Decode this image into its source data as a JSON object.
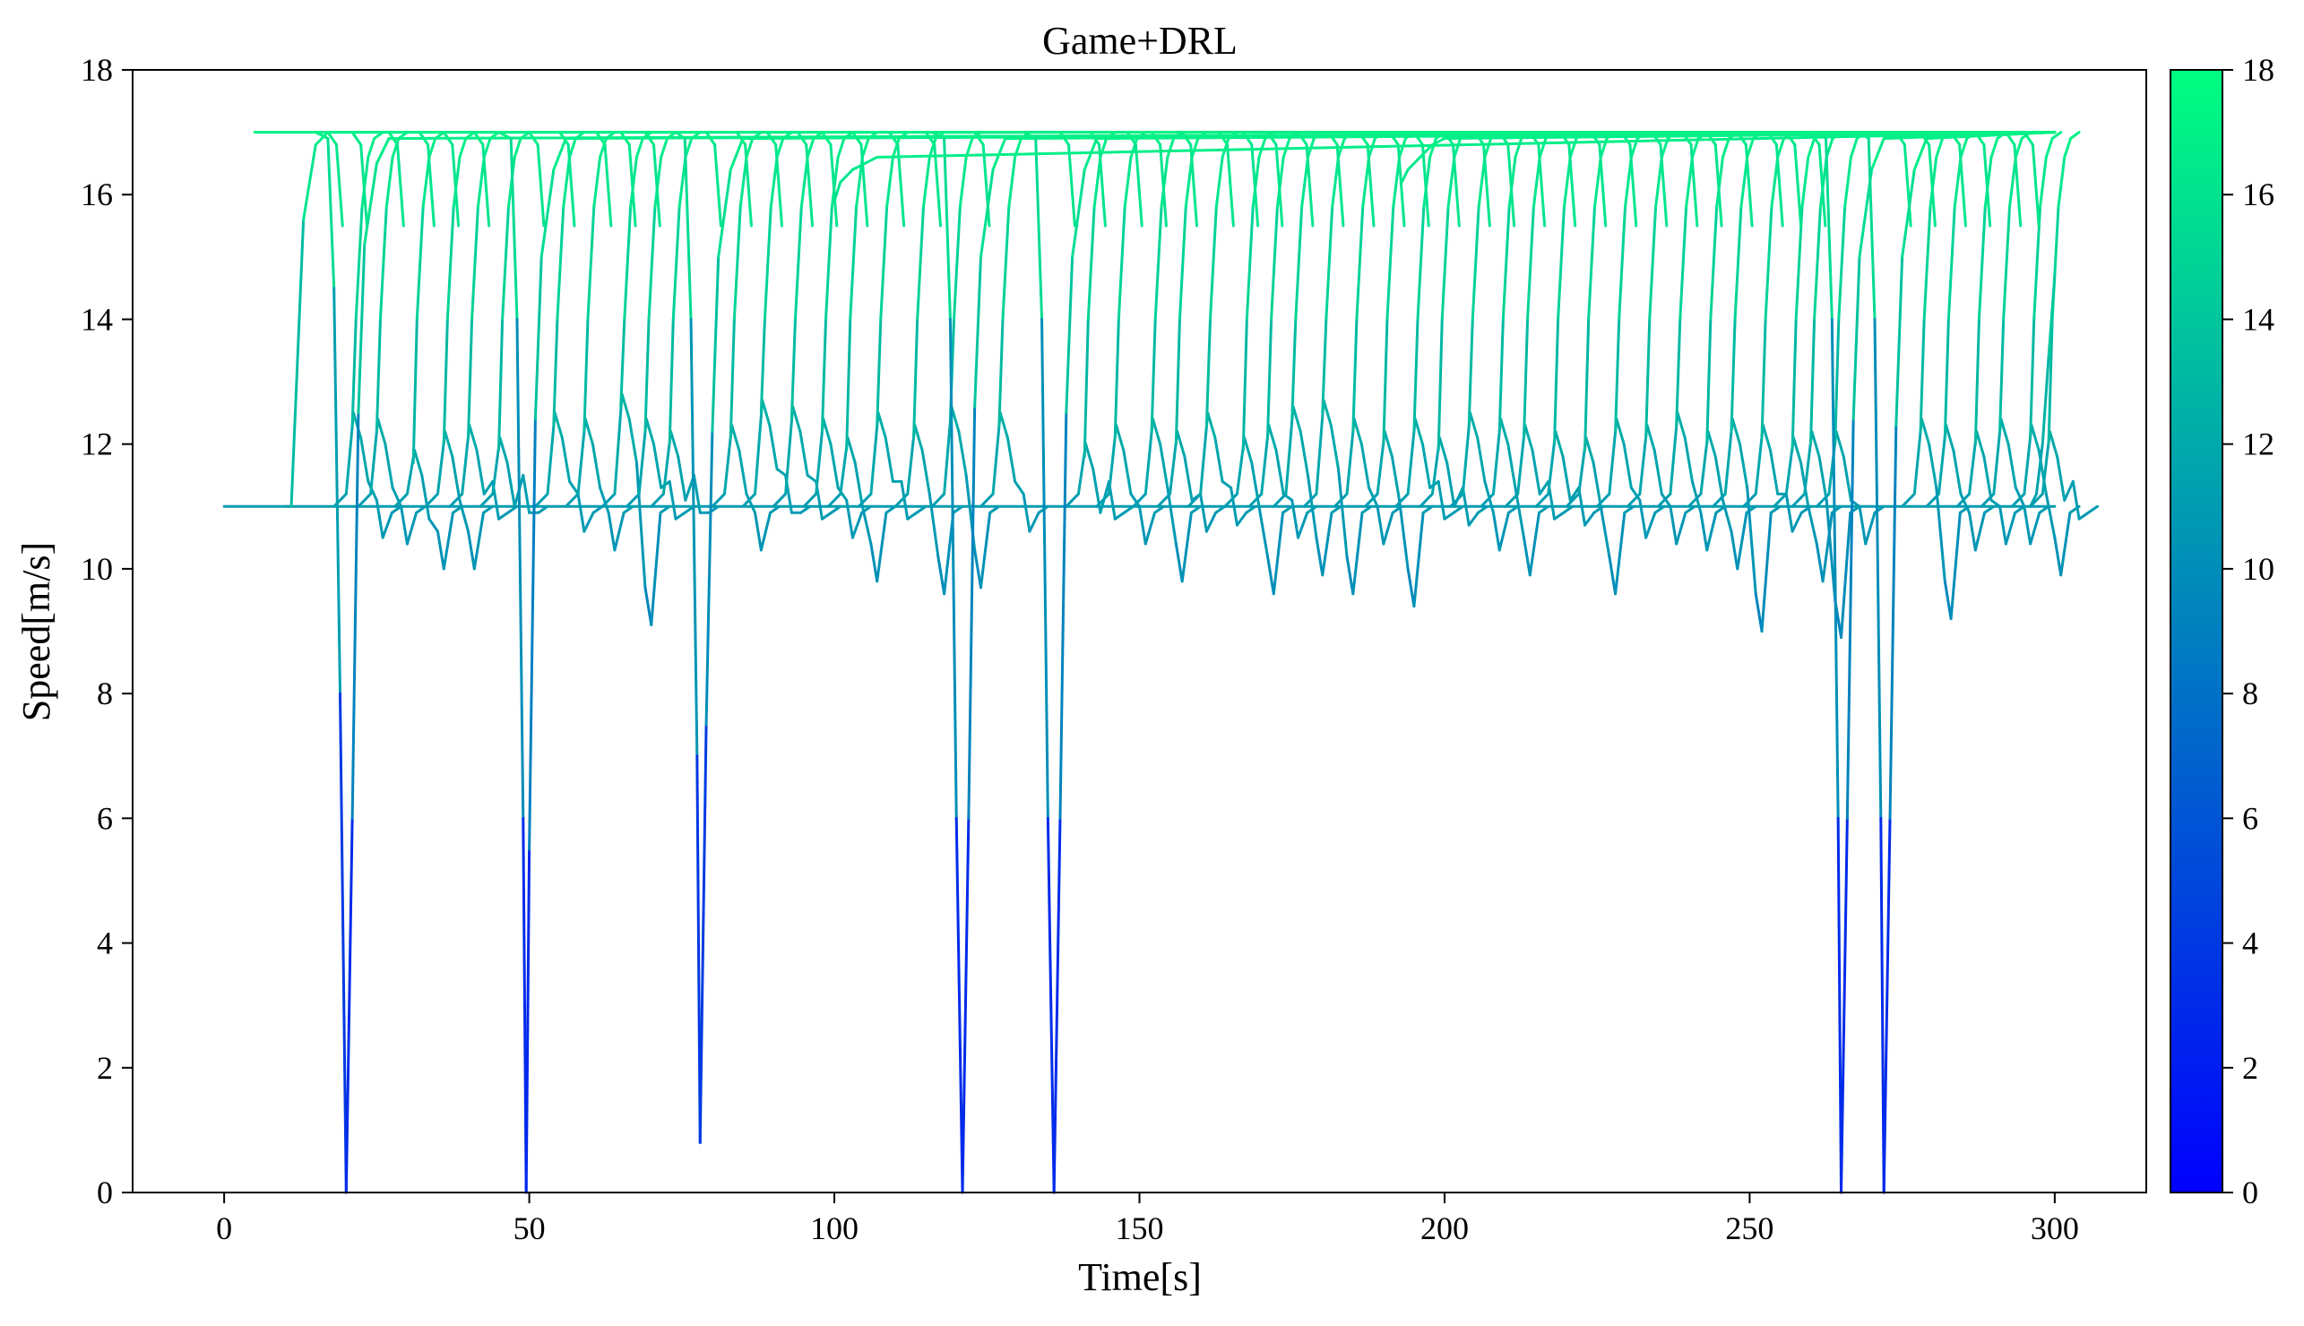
{
  "chart_data": {
    "type": "line",
    "title": "Game+DRL",
    "xlabel": "Time[s]",
    "ylabel": "Speed[m/s]",
    "xlim": [
      -15,
      315
    ],
    "ylim": [
      0,
      18
    ],
    "xticks": [
      "0",
      "50",
      "100",
      "150",
      "200",
      "250",
      "300"
    ],
    "yticks": [
      "0",
      "2",
      "4",
      "6",
      "8",
      "10",
      "12",
      "14",
      "16",
      "18"
    ],
    "colorbar": {
      "range": [
        0,
        18
      ],
      "ticks": [
        "0",
        "2",
        "4",
        "6",
        "8",
        "10",
        "12",
        "14",
        "16",
        "18"
      ],
      "colormap": "winter",
      "color_low": "#0000ff",
      "color_high": "#00ff80"
    },
    "grid": false,
    "baseline_speed": 11.0,
    "cruise_speed": 17.0,
    "series": [
      {
        "x": [
          0,
          300
        ],
        "y": [
          11.0,
          11.0
        ]
      },
      {
        "x": [
          5,
          300
        ],
        "y": [
          17.0,
          17.0
        ]
      },
      {
        "x": [
          10,
          11,
          13,
          15,
          17,
          300
        ],
        "y": [
          11.0,
          11.0,
          15.6,
          16.8,
          17.0,
          17.0
        ]
      },
      {
        "x": [
          15,
          17,
          18,
          19,
          20,
          21,
          22,
          23,
          25,
          27,
          300
        ],
        "y": [
          17.0,
          16.9,
          14.5,
          8.0,
          0.0,
          6.0,
          12.5,
          15.2,
          16.5,
          16.9,
          17.0
        ]
      },
      {
        "x": [
          45,
          47,
          48,
          49,
          49.5,
          50,
          51,
          52,
          54,
          56,
          300
        ],
        "y": [
          17.0,
          16.9,
          14.0,
          6.0,
          0.0,
          5.5,
          12.4,
          15.0,
          16.4,
          16.9,
          17.0
        ]
      },
      {
        "x": [
          74,
          75.5,
          76.5,
          77.5,
          78,
          79,
          80,
          81,
          83,
          85,
          300
        ],
        "y": [
          17.0,
          16.9,
          14.0,
          7.0,
          0.8,
          7.5,
          12.2,
          15.0,
          16.4,
          16.9,
          17.0
        ]
      },
      {
        "x": [
          116,
          118,
          119,
          120,
          121,
          122,
          123,
          124,
          126,
          128,
          300
        ],
        "y": [
          17.0,
          16.9,
          14.0,
          6.0,
          0.0,
          6.0,
          12.6,
          15.0,
          16.4,
          16.9,
          17.0
        ]
      },
      {
        "x": [
          131,
          133,
          134,
          135,
          136,
          137,
          138,
          139,
          141,
          143,
          300
        ],
        "y": [
          17.0,
          16.9,
          14.0,
          6.0,
          0.0,
          6.0,
          12.5,
          15.0,
          16.4,
          16.9,
          17.0
        ]
      },
      {
        "x": [
          261,
          262.5,
          263.5,
          264.5,
          265,
          266,
          267,
          268,
          270,
          272,
          300
        ],
        "y": [
          17.0,
          16.9,
          14.0,
          6.0,
          0.0,
          6.0,
          12.4,
          15.0,
          16.4,
          16.9,
          17.0
        ]
      },
      {
        "x": [
          268,
          269.5,
          270.5,
          271.5,
          272,
          273,
          274,
          275,
          277,
          279,
          300
        ],
        "y": [
          17.0,
          16.9,
          14.0,
          6.0,
          0.0,
          6.0,
          12.3,
          15.0,
          16.4,
          16.9,
          17.0
        ]
      },
      {
        "x": [
          296,
          297,
          298,
          299,
          300
        ],
        "y": [
          11.0,
          11.2,
          12.0,
          13.4,
          14.7
        ]
      },
      {
        "x": [
          100,
          101,
          103,
          105,
          107,
          300
        ],
        "y": [
          15.9,
          16.2,
          16.4,
          16.5,
          16.6,
          17.0
        ]
      },
      {
        "x": [
          193,
          194,
          196,
          198,
          200,
          300
        ],
        "y": [
          16.2,
          16.4,
          16.6,
          16.8,
          16.9,
          17.0
        ]
      }
    ],
    "merge_dips": {
      "note_free": true,
      "times": [
        20,
        24,
        30,
        35,
        39,
        44,
        53,
        58,
        64,
        68,
        72,
        82,
        87,
        92,
        97,
        101,
        106,
        112,
        118,
        126,
        140,
        145,
        151,
        155,
        160,
        166,
        170,
        174,
        179,
        184,
        189,
        194,
        198,
        203,
        208,
        212,
        217,
        222,
        227,
        232,
        237,
        242,
        246,
        251,
        256,
        259,
        263,
        277,
        281,
        286,
        290,
        295,
        298
      ],
      "peak_speed": [
        12.5,
        12.4,
        11.9,
        12.2,
        12.3,
        12.1,
        12.5,
        12.4,
        12.8,
        12.4,
        12.2,
        12.3,
        12.7,
        12.6,
        12.4,
        12.1,
        12.5,
        12.3,
        12.6,
        12.5,
        12.0,
        12.3,
        12.4,
        12.2,
        12.5,
        12.1,
        12.3,
        12.6,
        12.7,
        12.4,
        12.2,
        12.4,
        12.1,
        12.5,
        12.4,
        12.3,
        12.2,
        12.1,
        12.4,
        12.3,
        12.5,
        12.2,
        12.4,
        12.3,
        12.1,
        12.2,
        12.2,
        12.4,
        12.3,
        12.2,
        12.4,
        12.3,
        12.2
      ],
      "min_speed": [
        10.5,
        10.4,
        10.0,
        10.0,
        10.8,
        10.9,
        10.6,
        10.3,
        9.1,
        10.8,
        10.9,
        10.3,
        10.9,
        10.8,
        10.5,
        9.8,
        10.8,
        9.6,
        9.7,
        10.6,
        10.8,
        10.4,
        9.8,
        10.6,
        10.7,
        9.6,
        10.5,
        9.9,
        9.6,
        10.4,
        9.4,
        10.8,
        10.7,
        10.3,
        9.9,
        10.8,
        10.7,
        9.6,
        10.5,
        10.4,
        10.3,
        10.0,
        9.0,
        10.6,
        9.8,
        8.9,
        10.4,
        9.2,
        10.3,
        10.4,
        10.4,
        9.9,
        10.8
      ]
    }
  }
}
